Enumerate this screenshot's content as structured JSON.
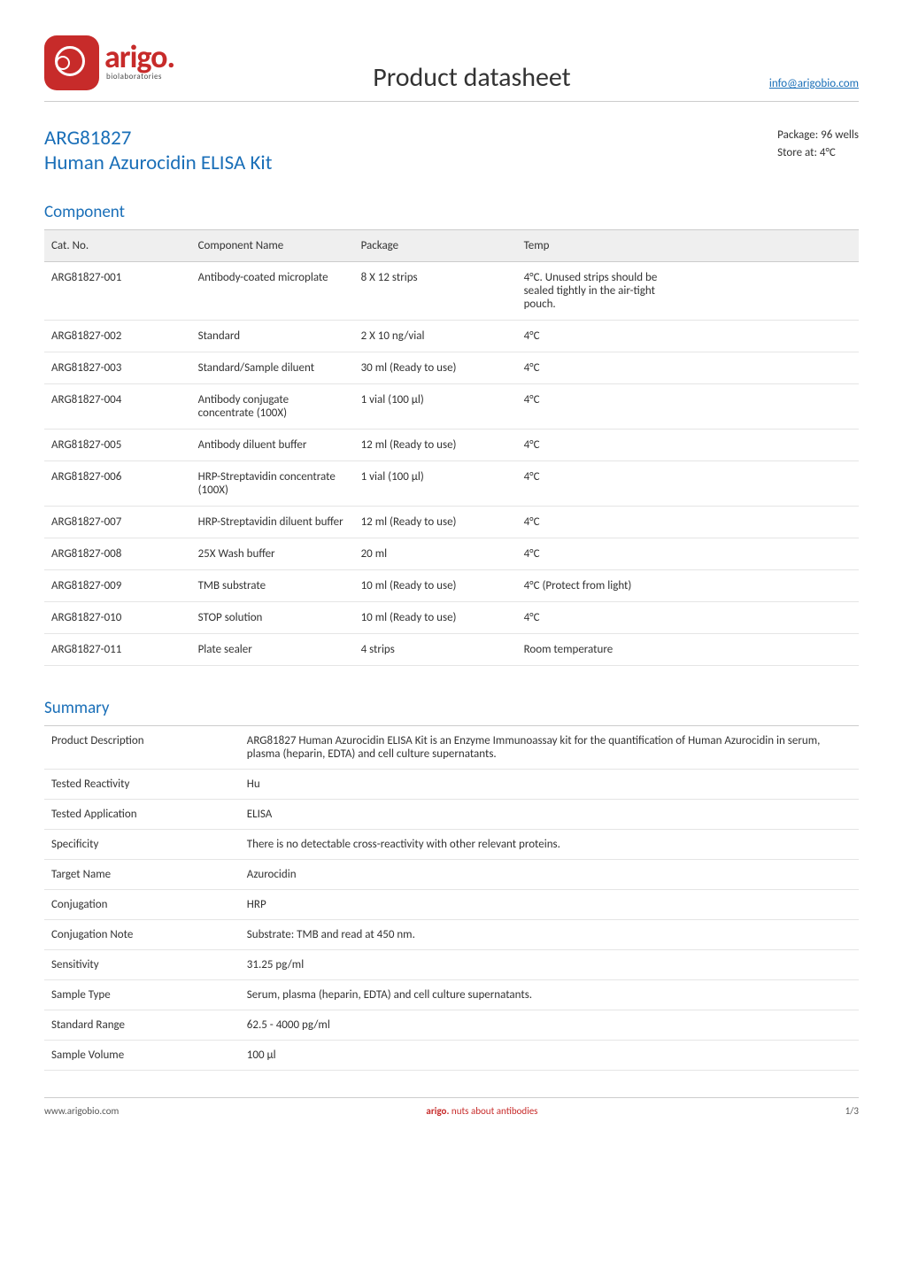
{
  "header": {
    "logo_word": "arigo.",
    "logo_sub": "biolaboratories",
    "doc_title": "Product datasheet",
    "info_email": "info@arigobio.com"
  },
  "title_block": {
    "code": "ARG81827",
    "name": "Human Azurocidin ELISA Kit",
    "package_label": "Package:",
    "package_value": "96 wells",
    "store_label": "Store at:",
    "store_value": "4°C"
  },
  "component_section": {
    "heading": "Component",
    "columns": [
      "Cat. No.",
      "Component Name",
      "Package",
      "Temp"
    ],
    "rows": [
      {
        "cat": "ARG81827-001",
        "name": "Antibody-coated microplate",
        "pkg": "8 X 12 strips",
        "temp": "4°C. Unused strips should be sealed tightly in the air-tight pouch."
      },
      {
        "cat": "ARG81827-002",
        "name": "Standard",
        "pkg": "2 X 10 ng/vial",
        "temp": "4°C"
      },
      {
        "cat": "ARG81827-003",
        "name": "Standard/Sample diluent",
        "pkg": "30 ml (Ready to use)",
        "temp": "4°C"
      },
      {
        "cat": "ARG81827-004",
        "name": "Antibody conjugate concentrate (100X)",
        "pkg": "1 vial (100 µl)",
        "temp": "4°C"
      },
      {
        "cat": "ARG81827-005",
        "name": "Antibody diluent buffer",
        "pkg": "12 ml (Ready to use)",
        "temp": "4°C"
      },
      {
        "cat": "ARG81827-006",
        "name": "HRP-Streptavidin concentrate (100X)",
        "pkg": "1 vial (100 µl)",
        "temp": "4°C"
      },
      {
        "cat": "ARG81827-007",
        "name": "HRP-Streptavidin diluent buffer",
        "pkg": "12 ml (Ready to use)",
        "temp": "4°C"
      },
      {
        "cat": "ARG81827-008",
        "name": "25X Wash buffer",
        "pkg": "20 ml",
        "temp": "4°C"
      },
      {
        "cat": "ARG81827-009",
        "name": "TMB substrate",
        "pkg": "10 ml (Ready to use)",
        "temp": "4°C (Protect from light)"
      },
      {
        "cat": "ARG81827-010",
        "name": "STOP solution",
        "pkg": "10 ml (Ready to use)",
        "temp": "4°C"
      },
      {
        "cat": "ARG81827-011",
        "name": "Plate sealer",
        "pkg": "4 strips",
        "temp": "Room temperature"
      }
    ]
  },
  "summary_section": {
    "heading": "Summary",
    "rows": [
      {
        "label": "Product Description",
        "value": "ARG81827 Human Azurocidin ELISA Kit is an Enzyme Immunoassay kit for the quantification of Human Azurocidin in serum, plasma (heparin, EDTA) and cell culture supernatants."
      },
      {
        "label": "Tested Reactivity",
        "value": "Hu"
      },
      {
        "label": "Tested Application",
        "value": "ELISA"
      },
      {
        "label": "Specificity",
        "value": "There is no detectable cross-reactivity with other relevant proteins."
      },
      {
        "label": "Target Name",
        "value": "Azurocidin"
      },
      {
        "label": "Conjugation",
        "value": "HRP"
      },
      {
        "label": "Conjugation Note",
        "value": "Substrate: TMB and read at 450 nm."
      },
      {
        "label": "Sensitivity",
        "value": "31.25 pg/ml"
      },
      {
        "label": "Sample Type",
        "value": "Serum, plasma (heparin, EDTA) and cell culture supernatants."
      },
      {
        "label": "Standard Range",
        "value": "62.5 - 4000 pg/ml"
      },
      {
        "label": "Sample Volume",
        "value": "100 µl"
      }
    ]
  },
  "footer": {
    "left": "www.arigobio.com",
    "middle_brand": "arigo.",
    "middle_tag": "nuts about antibodies",
    "right": "1/3"
  },
  "colors": {
    "brand_red": "#c72b2a",
    "brand_blue": "#1a6fb8",
    "text": "#333333",
    "border": "#cccccc",
    "row_border": "#e5e5e5",
    "th_bg": "#efefef"
  }
}
